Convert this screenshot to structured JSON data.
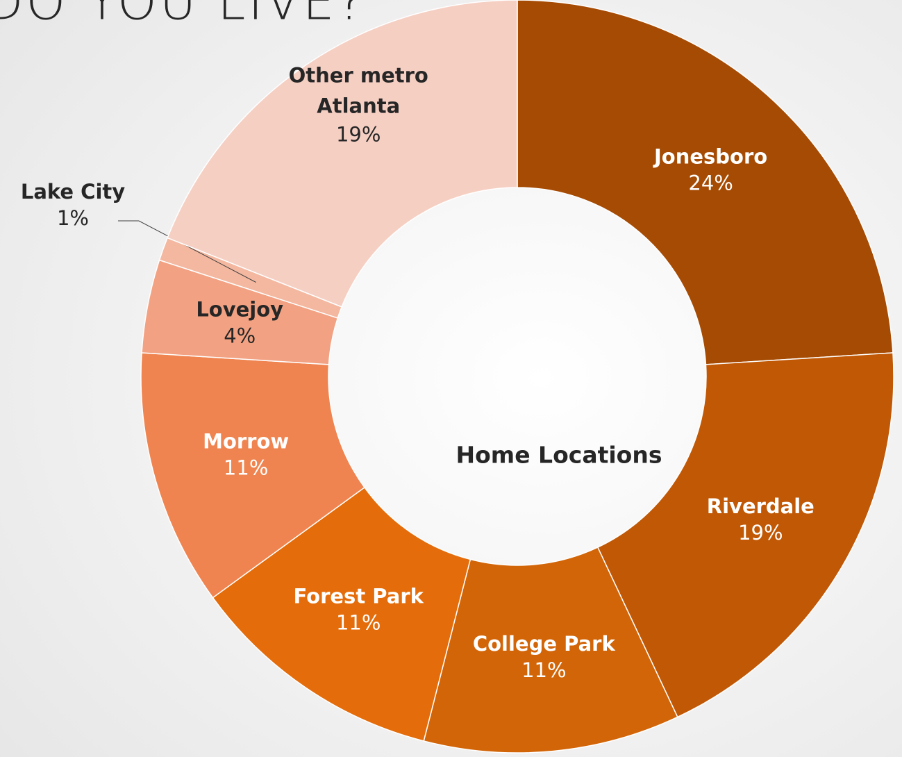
{
  "chart_data": {
    "type": "donut",
    "title": "DO YOU LIVE?",
    "center_label": "Home Locations",
    "categories": [
      "Jonesboro",
      "Riverdale",
      "College Park",
      "Forest Park",
      "Morrow",
      "Lovejoy",
      "Lake City",
      "Other metro Atlanta"
    ],
    "values": [
      24,
      19,
      11,
      11,
      11,
      4,
      1,
      19
    ],
    "value_labels": [
      "24%",
      "19%",
      "11%",
      "11%",
      "11%",
      "4%",
      "1%",
      "19%"
    ],
    "colors": [
      "#a64b04",
      "#c05806",
      "#d26508",
      "#e46c0a",
      "#ef8450",
      "#f2a283",
      "#f4b8a0",
      "#f6cfc3"
    ]
  }
}
